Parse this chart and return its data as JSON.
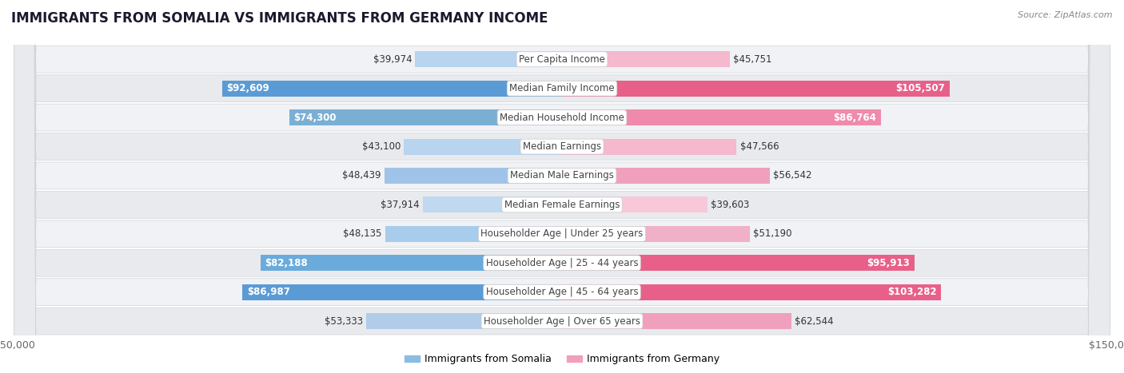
{
  "title": "IMMIGRANTS FROM SOMALIA VS IMMIGRANTS FROM GERMANY INCOME",
  "source": "Source: ZipAtlas.com",
  "categories": [
    "Per Capita Income",
    "Median Family Income",
    "Median Household Income",
    "Median Earnings",
    "Median Male Earnings",
    "Median Female Earnings",
    "Householder Age | Under 25 years",
    "Householder Age | 25 - 44 years",
    "Householder Age | 45 - 64 years",
    "Householder Age | Over 65 years"
  ],
  "somalia_values": [
    39974,
    92609,
    74300,
    43100,
    48439,
    37914,
    48135,
    82188,
    86987,
    53333
  ],
  "germany_values": [
    45751,
    105507,
    86764,
    47566,
    56542,
    39603,
    51190,
    95913,
    103282,
    62544
  ],
  "somalia_labels": [
    "$39,974",
    "$92,609",
    "$74,300",
    "$43,100",
    "$48,439",
    "$37,914",
    "$48,135",
    "$82,188",
    "$86,987",
    "$53,333"
  ],
  "germany_labels": [
    "$45,751",
    "$105,507",
    "$86,764",
    "$47,566",
    "$56,542",
    "$39,603",
    "$51,190",
    "$95,913",
    "$103,282",
    "$62,544"
  ],
  "somalia_colors": [
    "#b8d4ee",
    "#5b9bd5",
    "#7aafd4",
    "#b8d4ee",
    "#a0c4e8",
    "#c0d8f0",
    "#a8ccec",
    "#6aabdc",
    "#5b9bd5",
    "#b0cce8"
  ],
  "germany_colors": [
    "#f5b8cc",
    "#e8608a",
    "#f08aac",
    "#f5b8cc",
    "#f0a0bc",
    "#f8c8d8",
    "#f0b0c8",
    "#e8608a",
    "#e8608a",
    "#f0a0bc"
  ],
  "somalia_threshold": 60000,
  "germany_threshold": 75000,
  "max_value": 150000,
  "bar_height": 0.55,
  "background_color": "#ffffff",
  "row_colors": [
    "#f0f2f5",
    "#e8eaed"
  ],
  "label_fontsize": 8.5,
  "category_fontsize": 8.5,
  "title_fontsize": 12,
  "legend_somalia": "Immigrants from Somalia",
  "legend_germany": "Immigrants from Germany",
  "legend_somalia_color": "#8bbde0",
  "legend_germany_color": "#f0a0bc"
}
